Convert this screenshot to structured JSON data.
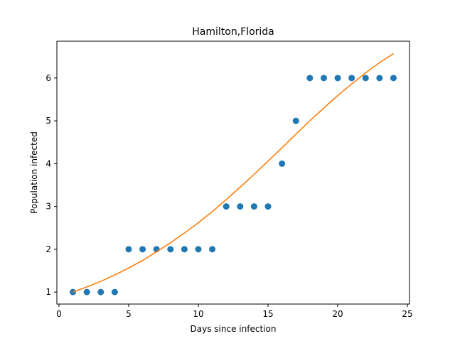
{
  "chart_data": {
    "type": "scatter",
    "title": "Hamilton,Florida",
    "xlabel": "Days since infection",
    "ylabel": "Population infected",
    "xlim": [
      -0.15,
      25.15
    ],
    "ylim": [
      0.72,
      6.86
    ],
    "xticks": [
      0,
      5,
      10,
      15,
      20,
      25
    ],
    "yticks": [
      1,
      2,
      3,
      4,
      5,
      6
    ],
    "grid": false,
    "series": [
      {
        "kind": "scatter",
        "color": "#1f77b4",
        "x": [
          1,
          2,
          3,
          4,
          5,
          6,
          7,
          8,
          9,
          10,
          11,
          12,
          13,
          14,
          15,
          16,
          17,
          18,
          19,
          20,
          21,
          22,
          23,
          24
        ],
        "y": [
          1,
          1,
          1,
          1,
          2,
          2,
          2,
          2,
          2,
          2,
          2,
          3,
          3,
          3,
          3,
          4,
          5,
          6,
          6,
          6,
          6,
          6,
          6,
          6
        ]
      },
      {
        "kind": "line",
        "color": "#ff7f0e",
        "x": [
          1,
          2,
          3,
          4,
          5,
          6,
          7,
          8,
          9,
          10,
          11,
          12,
          13,
          14,
          15,
          16,
          17,
          18,
          19,
          20,
          21,
          22,
          23,
          24
        ],
        "y": [
          1.0,
          1.12,
          1.25,
          1.4,
          1.56,
          1.74,
          1.94,
          2.15,
          2.38,
          2.62,
          2.88,
          3.16,
          3.45,
          3.75,
          4.06,
          4.37,
          4.69,
          5.0,
          5.3,
          5.59,
          5.86,
          6.12,
          6.36,
          6.57
        ]
      }
    ]
  }
}
